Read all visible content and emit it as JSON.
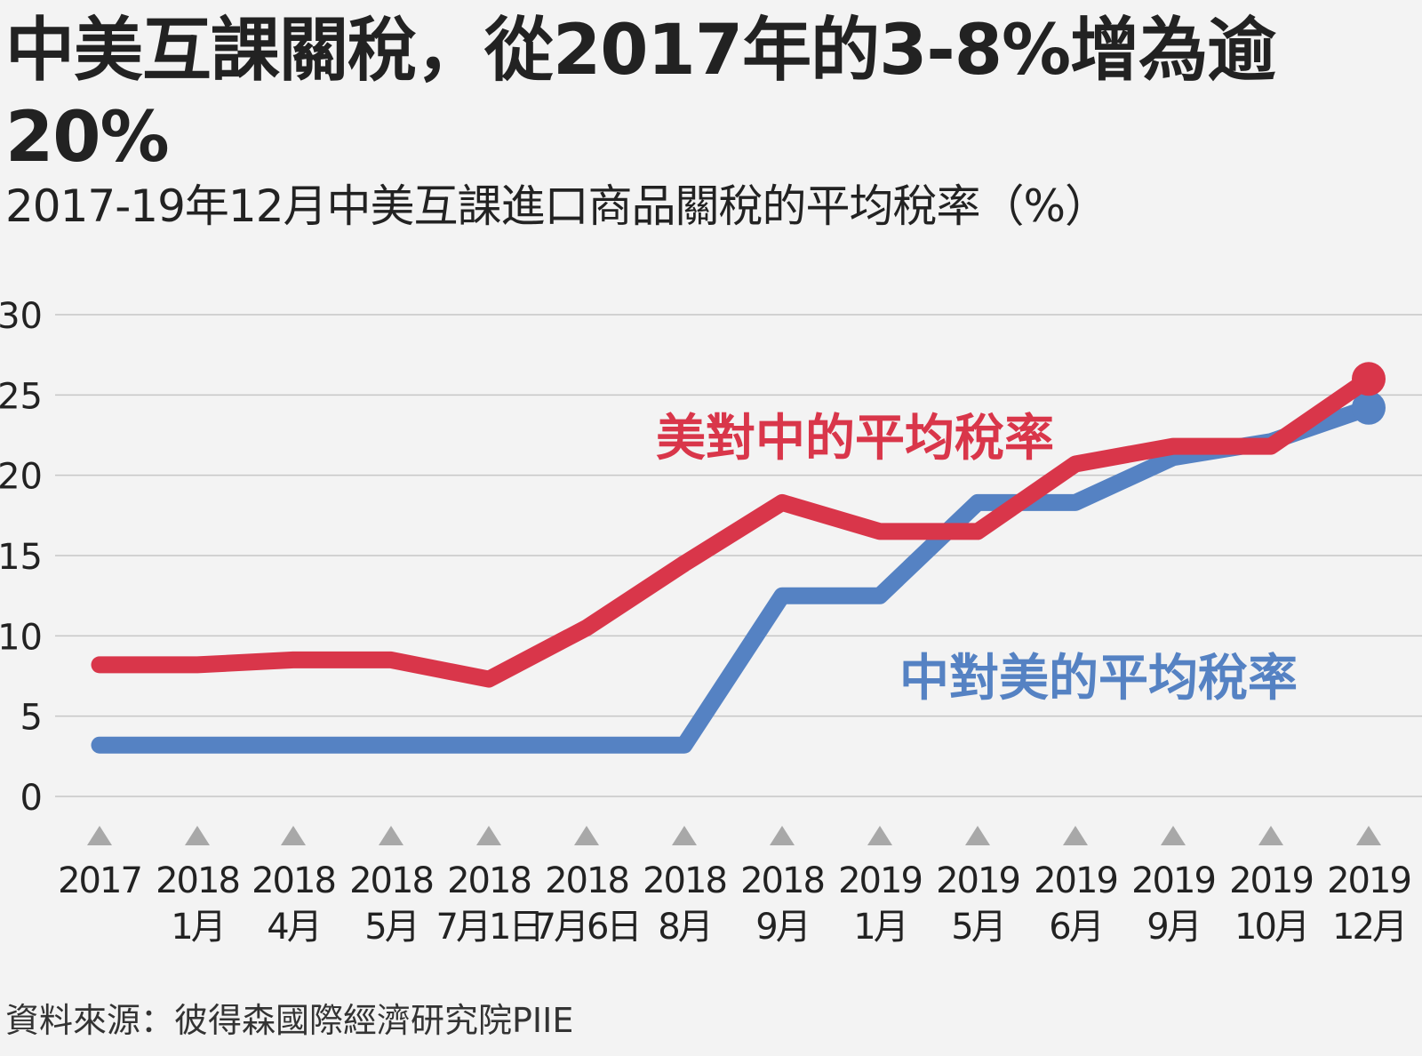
{
  "title": "中美互課關稅，從2017年的3-8%增為逾20%",
  "subtitle": "2017-19年12月中美互課進口商品關稅的平均稅率（%）",
  "source": "資料來源：彼得森國際經濟研究院PIIE",
  "chart_data": {
    "type": "line",
    "categories": [
      [
        "2017",
        ""
      ],
      [
        "2018",
        "1月"
      ],
      [
        "2018",
        "4月"
      ],
      [
        "2018",
        "5月"
      ],
      [
        "2018",
        "7月1日"
      ],
      [
        "2018",
        "7月6日"
      ],
      [
        "2018",
        "8月"
      ],
      [
        "2018",
        "9月"
      ],
      [
        "2019",
        "1月"
      ],
      [
        "2019",
        "5月"
      ],
      [
        "2019",
        "6月"
      ],
      [
        "2019",
        "9月"
      ],
      [
        "2019",
        "10月"
      ],
      [
        "2019",
        "12月"
      ]
    ],
    "yticks": [
      "0",
      "5",
      "10",
      "15",
      "20",
      "25",
      "30"
    ],
    "ylim": [
      0,
      30
    ],
    "grid": true,
    "series": [
      {
        "name": "美對中的平均稅率",
        "color": "#d9364a",
        "values": [
          8.2,
          8.2,
          8.5,
          8.5,
          7.3,
          10.5,
          14.5,
          18.3,
          16.5,
          16.5,
          20.7,
          21.8,
          21.8,
          26.0
        ]
      },
      {
        "name": "中對美的平均稅率",
        "color": "#5582c3",
        "values": [
          3.2,
          3.2,
          3.2,
          3.2,
          3.2,
          3.2,
          3.2,
          12.5,
          12.5,
          18.3,
          18.3,
          21.1,
          22.1,
          24.2
        ]
      }
    ]
  }
}
